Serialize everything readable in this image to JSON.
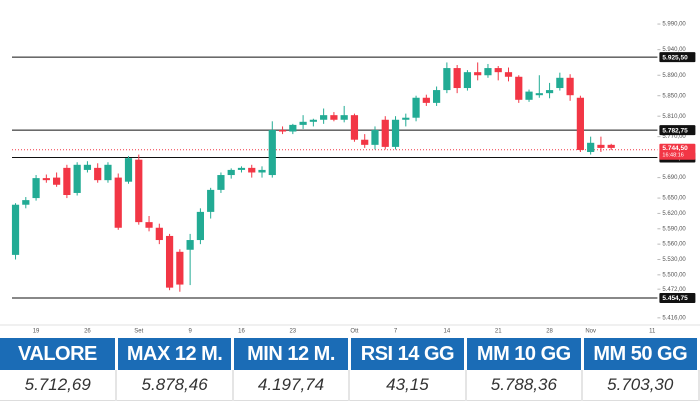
{
  "chart_data": {
    "type": "candlestick",
    "categories": [
      null,
      null,
      "19",
      null,
      null,
      null,
      null,
      "26",
      null,
      null,
      null,
      null,
      "Set",
      null,
      null,
      null,
      null,
      "9",
      null,
      null,
      null,
      null,
      "16",
      null,
      null,
      null,
      null,
      "23",
      null,
      null,
      null,
      null,
      null,
      "Ott",
      null,
      null,
      null,
      "7",
      null,
      null,
      null,
      null,
      "14",
      null,
      null,
      null,
      null,
      "21",
      null,
      null,
      null,
      null,
      "28",
      null,
      null,
      null,
      "Nov",
      null,
      null,
      null,
      null,
      null,
      "11"
    ],
    "open": [
      5539,
      5637,
      5650,
      5689,
      5690,
      5709,
      5660,
      5705,
      5709,
      5685,
      5690,
      5682,
      5725,
      5603,
      5592,
      5576,
      5545,
      5549,
      5568,
      5623,
      5666,
      5695,
      5705,
      5709,
      5700,
      5695,
      5783,
      5780,
      5793,
      5799,
      5803,
      5812,
      5803,
      5812,
      5764,
      5754,
      5803,
      5750,
      5803,
      5807,
      5846,
      5836,
      5861,
      5904,
      5865,
      5896,
      5890,
      5904,
      5896,
      5887,
      5842,
      5851,
      5855,
      5865,
      5885,
      5846,
      5740,
      5754,
      5754,
      null,
      null,
      null,
      null
    ],
    "high": [
      5640,
      5652,
      5695,
      5696,
      5700,
      5715,
      5720,
      5722,
      5718,
      5720,
      5698,
      5732,
      5735,
      5615,
      5600,
      5580,
      5550,
      5580,
      5630,
      5670,
      5700,
      5708,
      5712,
      5715,
      5712,
      5800,
      5790,
      5795,
      5812,
      5805,
      5825,
      5818,
      5830,
      5815,
      5775,
      5790,
      5810,
      5810,
      5815,
      5850,
      5852,
      5868,
      5915,
      5910,
      5900,
      5915,
      5912,
      5908,
      5905,
      5890,
      5862,
      5890,
      5875,
      5895,
      5892,
      5850,
      5770,
      5770,
      5756,
      null,
      null,
      null,
      null
    ],
    "low": [
      5530,
      5630,
      5645,
      5680,
      5672,
      5650,
      5655,
      5700,
      5680,
      5680,
      5588,
      5678,
      5598,
      5585,
      5560,
      5470,
      5467,
      5480,
      5560,
      5610,
      5660,
      5688,
      5700,
      5690,
      5690,
      5690,
      5775,
      5775,
      5785,
      5790,
      5795,
      5800,
      5798,
      5760,
      5748,
      5745,
      5745,
      5745,
      5790,
      5800,
      5830,
      5830,
      5855,
      5855,
      5860,
      5880,
      5885,
      5880,
      5878,
      5836,
      5838,
      5846,
      5845,
      5860,
      5840,
      5740,
      5735,
      5740,
      5744,
      null,
      null,
      null,
      null
    ],
    "close": [
      5637,
      5646,
      5689,
      5685,
      5676,
      5656,
      5715,
      5715,
      5685,
      5715,
      5592,
      5728,
      5603,
      5592,
      5568,
      5475,
      5481,
      5568,
      5623,
      5666,
      5695,
      5705,
      5709,
      5700,
      5705,
      5783,
      5780,
      5793,
      5799,
      5803,
      5812,
      5803,
      5812,
      5764,
      5754,
      5783,
      5750,
      5803,
      5807,
      5846,
      5836,
      5861,
      5904,
      5865,
      5896,
      5890,
      5904,
      5896,
      5887,
      5842,
      5858,
      5855,
      5861,
      5885,
      5851,
      5744,
      5758,
      5748,
      5748,
      null,
      null,
      null,
      null
    ],
    "up_color": "#22ab94",
    "down_color": "#f23645",
    "ylim": [
      5402,
      6037
    ],
    "yticks": [
      {
        "value": 5990,
        "label": "5.990,00"
      },
      {
        "value": 5940,
        "label": "5.940,00"
      },
      {
        "value": 5890,
        "label": "5.890,00"
      },
      {
        "value": 5850,
        "label": "5.850,00"
      },
      {
        "value": 5810,
        "label": "5.810,00"
      },
      {
        "value": 5770,
        "label": "5.770,00"
      },
      {
        "value": 5690,
        "label": "5.690,00"
      },
      {
        "value": 5650,
        "label": "5.650,00"
      },
      {
        "value": 5620,
        "label": "5.620,00"
      },
      {
        "value": 5590,
        "label": "5.590,00"
      },
      {
        "value": 5560,
        "label": "5.560,00"
      },
      {
        "value": 5530,
        "label": "5.530,00"
      },
      {
        "value": 5500,
        "label": "5.500,00"
      },
      {
        "value": 5472,
        "label": "5.472,00"
      },
      {
        "value": 5416,
        "label": "5.416,00"
      }
    ],
    "levels": [
      {
        "value": 5925.5,
        "label": "5.925,50"
      },
      {
        "value": 5782.75,
        "label": "5.782,75"
      },
      {
        "value": 5729.25,
        "label": "5.729,25"
      },
      {
        "value": 5454.75,
        "label": "5.454,75"
      }
    ],
    "last_price": {
      "value": 5744.5,
      "label": "5.744,50"
    },
    "countdown": "16:48:16"
  },
  "table": {
    "header_color": "#1b6cb6",
    "headers": [
      "VALORE",
      "MAX 12 M.",
      "MIN 12 M.",
      "RSI 14 GG",
      "MM 10 GG",
      "MM 50 GG"
    ],
    "values": [
      "5.712,69",
      "5.878,46",
      "4.197,74",
      "43,15",
      "5.788,36",
      "5.703,30"
    ]
  }
}
